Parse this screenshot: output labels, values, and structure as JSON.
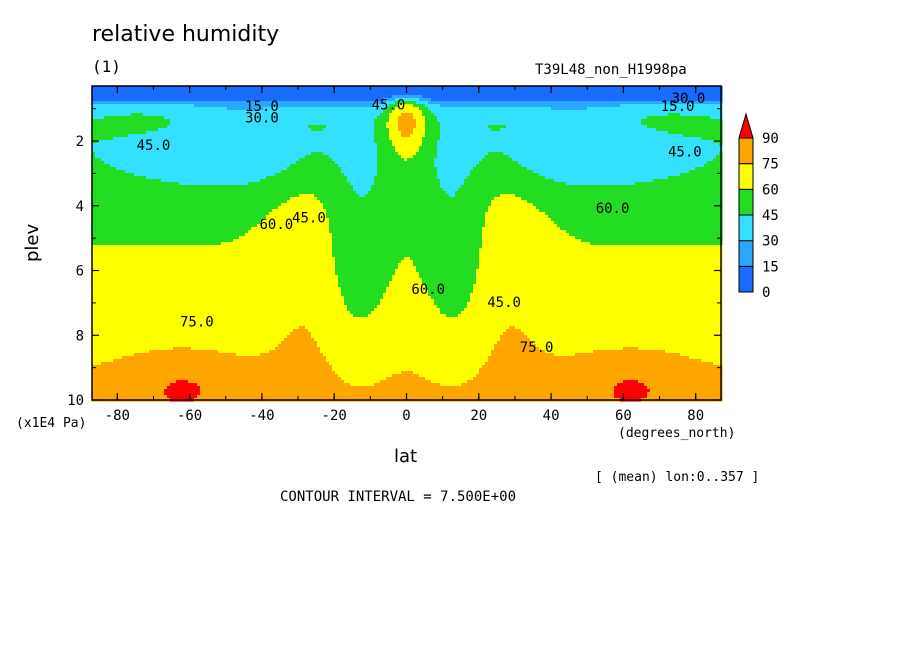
{
  "chart_data": {
    "type": "contour",
    "title": "relative humidity",
    "panel_label": "(1)",
    "experiment": "T39L48_non_H1998pa",
    "xlabel": "lat",
    "xunits": "(degrees_north)",
    "ylabel": "plev",
    "yunits": "(x1E4 Pa)",
    "subset_note": "[ (mean) lon:0..357 ]",
    "contour_interval_text": "CONTOUR INTERVAL = 7.500E+00",
    "xlim": [
      -87,
      87
    ],
    "ylim": [
      10,
      0.3
    ],
    "x_ticks": [
      -80,
      -60,
      -40,
      -20,
      0,
      20,
      40,
      60,
      80
    ],
    "x_tick_labels": [
      "-80",
      "-60",
      "-40",
      "-20",
      "0",
      "20",
      "40",
      "60",
      "80"
    ],
    "y_ticks": [
      2,
      4,
      6,
      8,
      10
    ],
    "y_tick_labels": [
      "2",
      "4",
      "6",
      "8",
      "10"
    ],
    "levels": [
      0,
      15,
      30,
      45,
      60,
      75,
      90
    ],
    "level_labels": [
      "0",
      "15",
      "30",
      "45",
      "60",
      "75",
      "90"
    ],
    "colors": [
      "#1a6bff",
      "#2aa8ff",
      "#33e0ff",
      "#22dd22",
      "#ffff00",
      "#ffa500",
      "#ff0000"
    ],
    "contour_labels": [
      {
        "text": "15.0",
        "lat": -40,
        "p": 0.95
      },
      {
        "text": "30.0",
        "lat": -40,
        "p": 1.3
      },
      {
        "text": "45.0",
        "lat": -5,
        "p": 0.9
      },
      {
        "text": "45.0",
        "lat": -70,
        "p": 2.15
      },
      {
        "text": "45.0",
        "lat": 77,
        "p": 2.35
      },
      {
        "text": "45.0",
        "lat": -27,
        "p": 4.4
      },
      {
        "text": "45.0",
        "lat": 27,
        "p": 7.0
      },
      {
        "text": "15.0",
        "lat": 75,
        "p": 0.95
      },
      {
        "text": "30.0",
        "lat": 78,
        "p": 0.7
      },
      {
        "text": "60.0",
        "lat": -36,
        "p": 4.6
      },
      {
        "text": "60.0",
        "lat": 6,
        "p": 6.6
      },
      {
        "text": "60.0",
        "lat": 57,
        "p": 4.1
      },
      {
        "text": "75.0",
        "lat": -58,
        "p": 7.6
      },
      {
        "text": "75.0",
        "lat": 36,
        "p": 8.4
      }
    ]
  }
}
